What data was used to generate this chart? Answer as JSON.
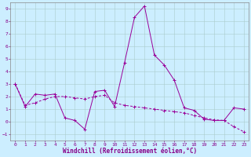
{
  "xlabel": "Windchill (Refroidissement éolien,°C)",
  "x": [
    0,
    1,
    2,
    3,
    4,
    5,
    6,
    7,
    8,
    9,
    10,
    11,
    12,
    13,
    14,
    15,
    16,
    17,
    18,
    19,
    20,
    21,
    22,
    23
  ],
  "y_line1": [
    3.0,
    1.2,
    2.2,
    2.1,
    2.2,
    0.3,
    0.1,
    -0.6,
    2.4,
    2.5,
    1.2,
    4.7,
    8.3,
    9.2,
    5.3,
    4.5,
    3.3,
    1.1,
    0.9,
    0.2,
    0.1,
    0.1,
    1.1,
    1.0
  ],
  "y_line2": [
    3.0,
    1.3,
    1.5,
    1.8,
    2.0,
    2.0,
    1.9,
    1.8,
    2.0,
    2.1,
    1.5,
    1.3,
    1.2,
    1.1,
    1.0,
    0.9,
    0.8,
    0.7,
    0.5,
    0.3,
    0.15,
    0.1,
    -0.4,
    -0.8
  ],
  "line_color": "#990099",
  "bg_color": "#cceeff",
  "grid_color": "#aacccc",
  "ylim": [
    -1.5,
    9.5
  ],
  "yticks": [
    -1,
    0,
    1,
    2,
    3,
    4,
    5,
    6,
    7,
    8,
    9
  ],
  "xlim": [
    -0.5,
    23.5
  ],
  "xticks": [
    0,
    1,
    2,
    3,
    4,
    5,
    6,
    7,
    8,
    9,
    10,
    11,
    12,
    13,
    14,
    15,
    16,
    17,
    18,
    19,
    20,
    21,
    22,
    23
  ],
  "tick_color": "#880088",
  "label_fontsize": 4.5,
  "xlabel_fontsize": 5.5
}
